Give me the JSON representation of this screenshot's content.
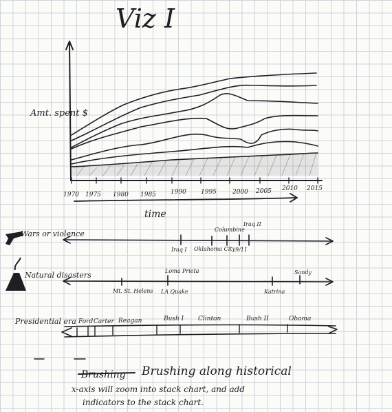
{
  "title": "Viz I",
  "stack_chart": {
    "ylabel": "Amt. spent $",
    "xlabel": "time",
    "tick_labels": [
      "1970",
      "1975",
      "1980",
      "1985",
      "1990",
      "1995",
      "2000",
      "2005",
      "2010",
      "2015"
    ]
  },
  "timelines": [
    {
      "label": "Wars or violence",
      "events": [
        "Iraq I",
        "Oklahoma City",
        "Columbine",
        "9/11",
        "Iraq II"
      ]
    },
    {
      "label": "Natural disasters",
      "events": [
        "Mt. St. Helens",
        "Loma Prieta",
        "LA Quake",
        "Katrina",
        "Sandy"
      ]
    },
    {
      "label": "Presidential era",
      "events": [
        "Ford",
        "Carter",
        "Reagan",
        "Bush I",
        "Clinton",
        "Bush II",
        "Obama"
      ]
    }
  ],
  "notes": {
    "struck_word": "Brushing",
    "line1": "Brushing along historical",
    "line2": "x-axis will zoom into stack chart, and add",
    "line3": "indicators to the stack chart."
  },
  "colors": {
    "ink": "#1e1e24",
    "grid": "#cfd3da",
    "paper": "#fbfbf8"
  }
}
